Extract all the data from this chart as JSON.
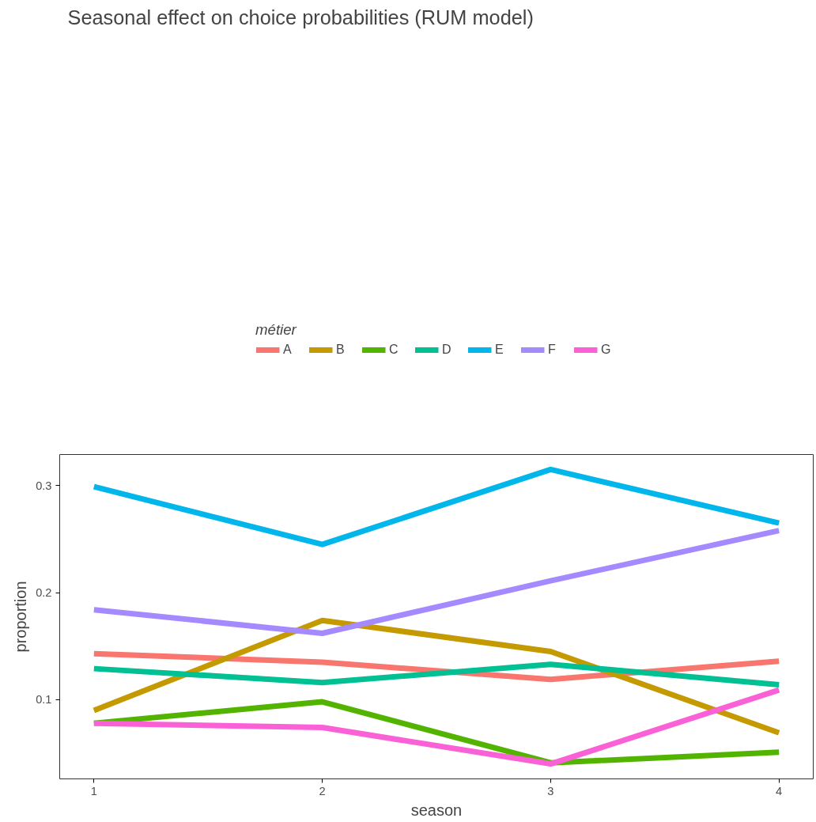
{
  "chart_data": {
    "type": "line",
    "title": "Seasonal effect on choice probabilities (RUM model)",
    "xlabel": "season",
    "ylabel": "proportion",
    "legend_title": "métier",
    "legend": "top",
    "grid": false,
    "x": [
      1,
      2,
      3,
      4
    ],
    "xlim": [
      0.85,
      4.15
    ],
    "xticks": [
      1,
      2,
      3,
      4
    ],
    "ylim": [
      0.026,
      0.329
    ],
    "yticks": [
      0.1,
      0.2,
      0.3
    ],
    "series": [
      {
        "name": "A",
        "color": "#f8766d",
        "values": [
          0.143,
          0.135,
          0.119,
          0.136
        ]
      },
      {
        "name": "B",
        "color": "#c49a00",
        "values": [
          0.09,
          0.174,
          0.145,
          0.069
        ]
      },
      {
        "name": "C",
        "color": "#53b400",
        "values": [
          0.078,
          0.098,
          0.041,
          0.051
        ]
      },
      {
        "name": "D",
        "color": "#00c094",
        "values": [
          0.129,
          0.116,
          0.133,
          0.114
        ]
      },
      {
        "name": "E",
        "color": "#00b6eb",
        "values": [
          0.299,
          0.245,
          0.315,
          0.265
        ]
      },
      {
        "name": "F",
        "color": "#a58aff",
        "values": [
          0.184,
          0.162,
          0.211,
          0.258
        ]
      },
      {
        "name": "G",
        "color": "#fb61d7",
        "values": [
          0.078,
          0.074,
          0.04,
          0.109
        ]
      }
    ]
  }
}
